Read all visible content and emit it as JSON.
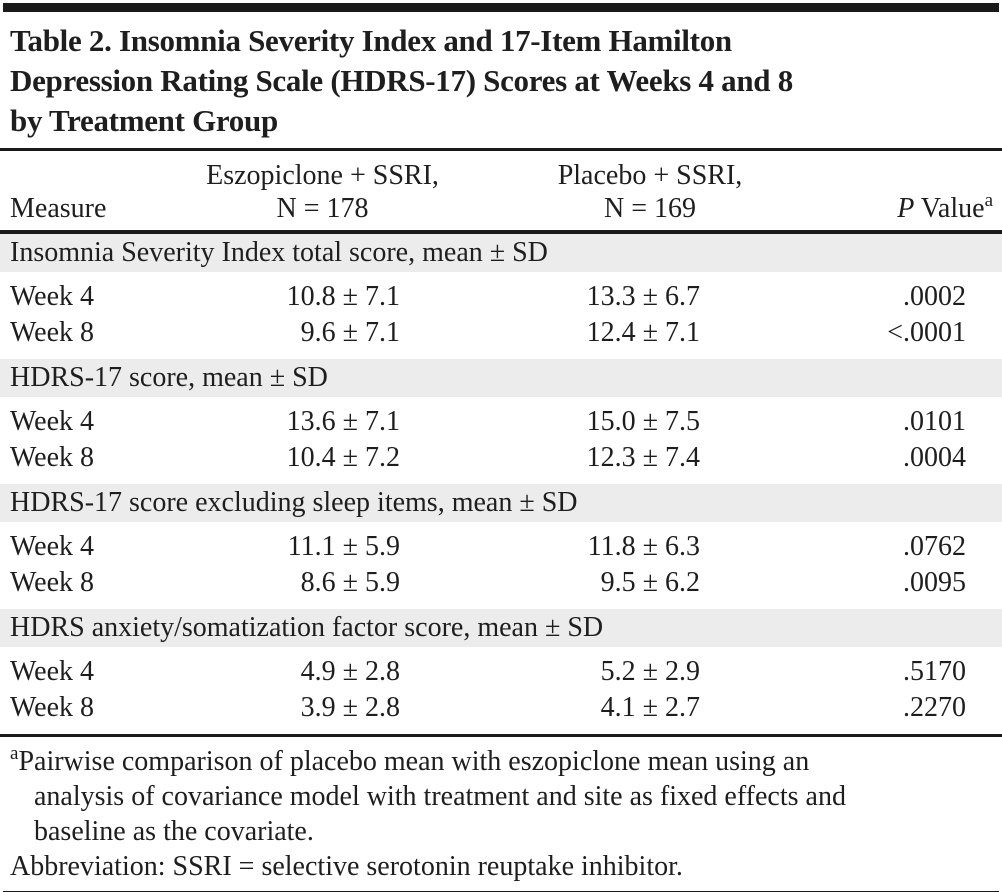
{
  "table": {
    "title_lines": {
      "line1": "Table 2. Insomnia Severity Index and 17-Item Hamilton",
      "line2": "Depression Rating Scale (HDRS-17) Scores at Weeks 4 and 8",
      "line3": "by Treatment Group"
    },
    "columns": {
      "measure": "Measure",
      "group1_line1": "Eszopiclone + SSRI,",
      "group1_line2": "N = 178",
      "group2_line1": "Placebo + SSRI,",
      "group2_line2": "N = 169",
      "pvalue_p": "P",
      "pvalue_word": "Value",
      "pvalue_superscript": "a"
    },
    "sections": [
      {
        "header": "Insomnia Severity Index total score, mean ± SD",
        "rows": [
          {
            "measure": "Week 4",
            "eszopiclone": "10.8 ± 7.1",
            "placebo": "13.3 ± 6.7",
            "p": ".0002"
          },
          {
            "measure": "Week 8",
            "eszopiclone": "9.6 ± 7.1",
            "placebo": "12.4 ± 7.1",
            "p": "<.0001"
          }
        ]
      },
      {
        "header": "HDRS-17 score, mean ± SD",
        "rows": [
          {
            "measure": "Week 4",
            "eszopiclone": "13.6 ± 7.1",
            "placebo": "15.0 ± 7.5",
            "p": ".0101"
          },
          {
            "measure": "Week 8",
            "eszopiclone": "10.4 ± 7.2",
            "placebo": "12.3 ± 7.4",
            "p": ".0004"
          }
        ]
      },
      {
        "header": "HDRS-17 score excluding sleep items, mean ± SD",
        "rows": [
          {
            "measure": "Week 4",
            "eszopiclone": "11.1 ± 5.9",
            "placebo": "11.8 ± 6.3",
            "p": ".0762"
          },
          {
            "measure": "Week 8",
            "eszopiclone": "8.6 ± 5.9",
            "placebo": "9.5 ± 6.2",
            "p": ".0095"
          }
        ]
      },
      {
        "header": "HDRS anxiety/somatization factor score, mean ± SD",
        "rows": [
          {
            "measure": "Week 4",
            "eszopiclone": "4.9 ± 2.8",
            "placebo": "5.2 ± 2.9",
            "p": ".5170"
          },
          {
            "measure": "Week 8",
            "eszopiclone": "3.9 ± 2.8",
            "placebo": "4.1 ± 2.7",
            "p": ".2270"
          }
        ]
      }
    ],
    "footnotes": {
      "a_marker": "a",
      "a_line1": "Pairwise comparison of placebo mean with eszopiclone mean using an",
      "a_line2": "analysis of covariance model with treatment and site as fixed effects and",
      "a_line3": "baseline as the covariate.",
      "abbreviation": "Abbreviation: SSRI = selective serotonin reuptake inhibitor."
    },
    "colors": {
      "band_background": "#ececec",
      "rule": "#1a1a1a",
      "text": "#1e1e1e",
      "page_background": "#ffffff"
    }
  }
}
